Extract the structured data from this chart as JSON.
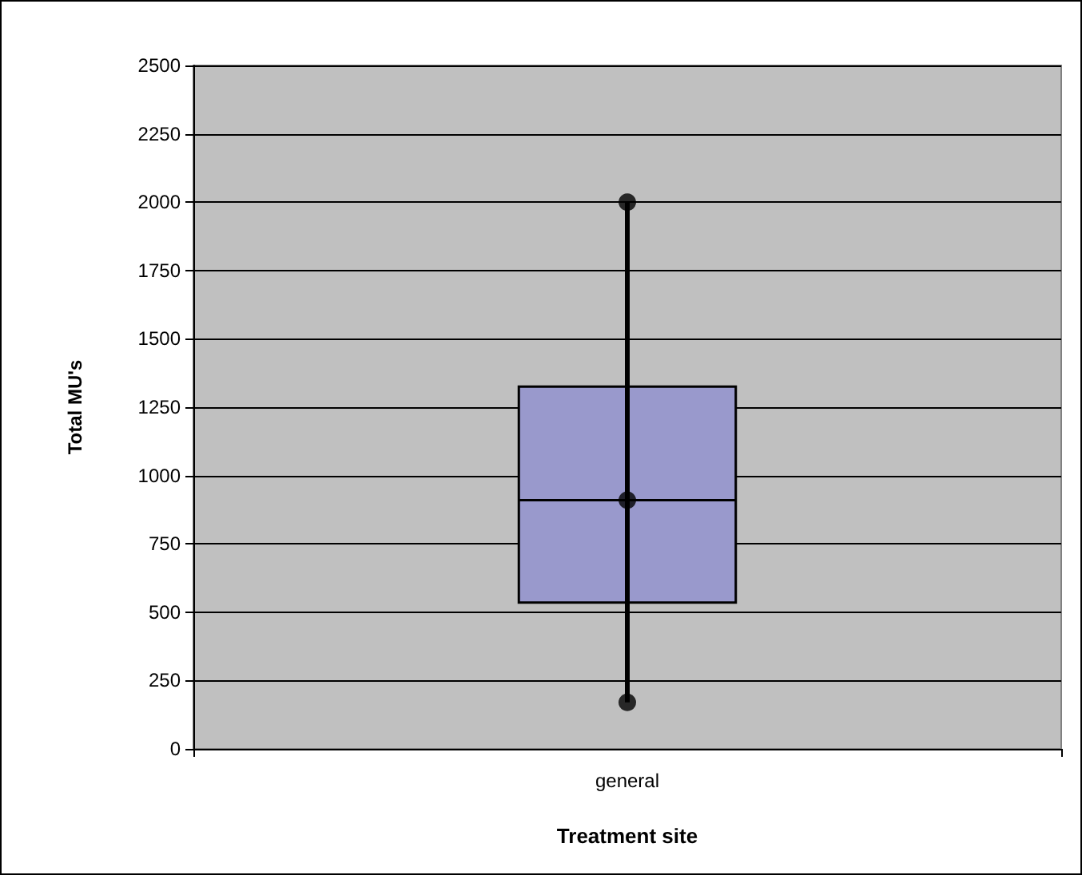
{
  "chart_data": {
    "type": "box",
    "xlabel": "Treatment site",
    "ylabel": "Total MU's",
    "categories": [
      "general"
    ],
    "boxes": [
      {
        "low": 170,
        "q1": 535,
        "median": 910,
        "q3": 1325,
        "high": 2000
      }
    ],
    "color": "#9999cc",
    "ylim": [
      0,
      2500
    ],
    "yticks": [
      0,
      250,
      500,
      750,
      1000,
      1250,
      1500,
      1750,
      2000,
      2250,
      2500
    ],
    "grid": "y",
    "marker": "circle",
    "series": [
      {
        "type": "scatter",
        "x": [
          "general",
          "general",
          "general"
        ],
        "values": [
          2000,
          910,
          170
        ],
        "color": "#000000"
      }
    ]
  }
}
